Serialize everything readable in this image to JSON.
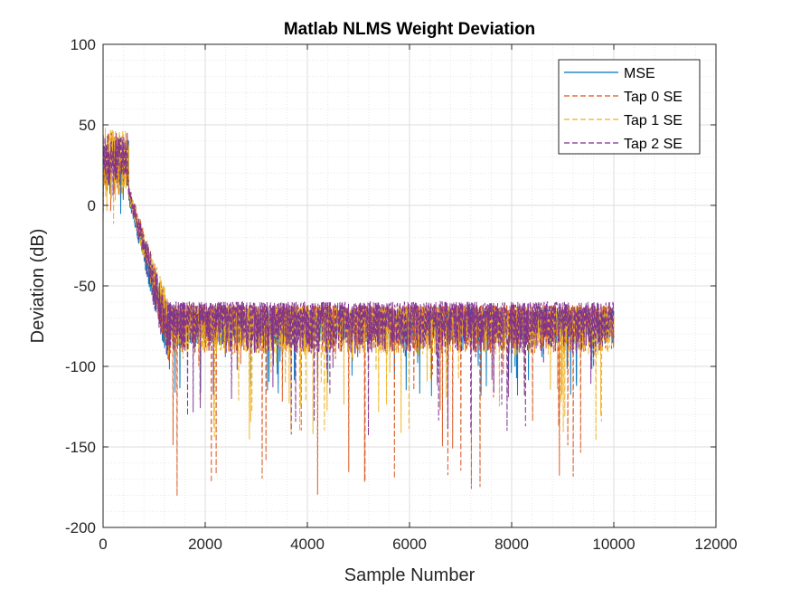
{
  "chart_data": {
    "type": "line",
    "title": "Matlab NLMS Weight Deviation",
    "xlabel": "Sample Number",
    "ylabel": "Deviation (dB)",
    "xlim": [
      0,
      12000
    ],
    "ylim": [
      -200,
      100
    ],
    "xticks": [
      0,
      2000,
      4000,
      6000,
      8000,
      10000,
      12000
    ],
    "yticks": [
      -200,
      -150,
      -100,
      -50,
      0,
      50,
      100
    ],
    "xtick_labels": [
      "0",
      "2000",
      "4000",
      "6000",
      "8000",
      "10000",
      "12000"
    ],
    "ytick_labels": [
      "-200",
      "-150",
      "-100",
      "-50",
      "0",
      "50",
      "100"
    ],
    "grid": true,
    "minor_grid": true,
    "legend_position": "top-right",
    "series": [
      {
        "name": "MSE",
        "style": "solid",
        "color": "#0072BD",
        "envelope": {
          "initial_level": 25,
          "initial_spread": 15,
          "transient_end": 500,
          "converge_end": 1300,
          "floor": -65,
          "noise_depth": 22,
          "spike_min": -120
        }
      },
      {
        "name": "Tap 0 SE",
        "style": "dashed",
        "color": "#D95319",
        "envelope": {
          "initial_level": 28,
          "initial_spread": 18,
          "transient_end": 500,
          "converge_end": 1300,
          "floor": -62,
          "noise_depth": 30,
          "spike_min": -183
        }
      },
      {
        "name": "Tap 1 SE",
        "style": "dashed",
        "color": "#EDB120",
        "envelope": {
          "initial_level": 26,
          "initial_spread": 22,
          "transient_end": 500,
          "converge_end": 1350,
          "floor": -63,
          "noise_depth": 30,
          "spike_min": -146
        }
      },
      {
        "name": "Tap 2 SE",
        "style": "dashed",
        "color": "#7E2F8E",
        "envelope": {
          "initial_level": 30,
          "initial_spread": 15,
          "transient_end": 480,
          "converge_end": 1250,
          "floor": -60,
          "noise_depth": 32,
          "spike_min": -147
        }
      }
    ],
    "x_end": 10000
  }
}
